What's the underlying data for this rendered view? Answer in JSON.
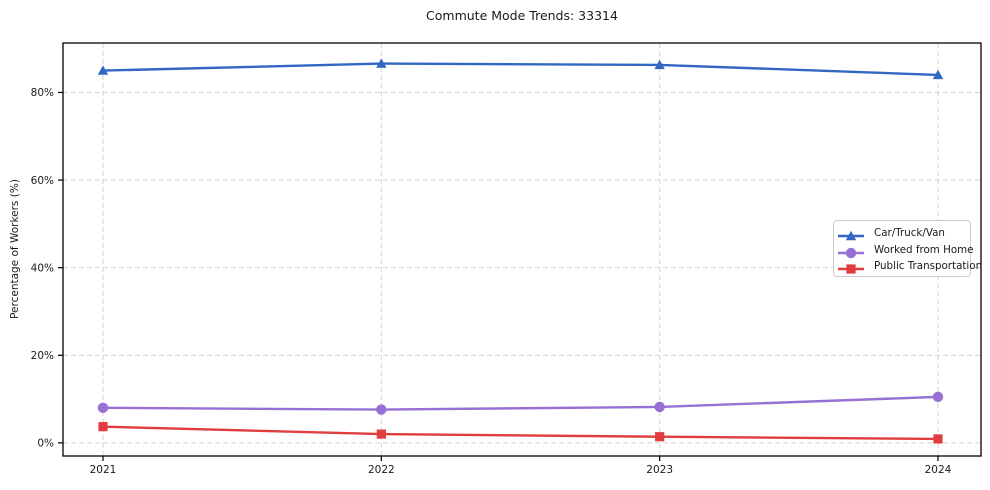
{
  "title": "Commute Mode Trends: 33314",
  "colors": {
    "background": "#ffffff",
    "grid": "#d2d2d2",
    "spine": "#000000",
    "text": "#1a1a1a",
    "legend_border": "#cccccc"
  },
  "chart_data": {
    "type": "line",
    "title": "Commute Mode Trends: 33314",
    "xlabel": "",
    "ylabel": "Percentage of Workers (%)",
    "x": [
      "2021",
      "2022",
      "2023",
      "2024"
    ],
    "series": [
      {
        "name": "Car/Truck/Van",
        "marker": "triangle",
        "color": "#3167c3",
        "values": [
          85.0,
          86.6,
          86.3,
          84.0
        ]
      },
      {
        "name": "Worked from Home",
        "marker": "circle",
        "color": "#9770d3",
        "values": [
          8.0,
          7.6,
          8.2,
          10.5
        ]
      },
      {
        "name": "Public Transportation",
        "marker": "square",
        "color": "#e03e3e",
        "values": [
          3.7,
          2.0,
          1.4,
          0.9
        ]
      }
    ],
    "yticks": [
      0,
      20,
      40,
      60,
      80
    ],
    "ytick_labels": [
      "0%",
      "20%",
      "40%",
      "60%",
      "80%"
    ],
    "ylim": [
      -3,
      91.3
    ],
    "grid": true,
    "legend_position": "center-right"
  }
}
